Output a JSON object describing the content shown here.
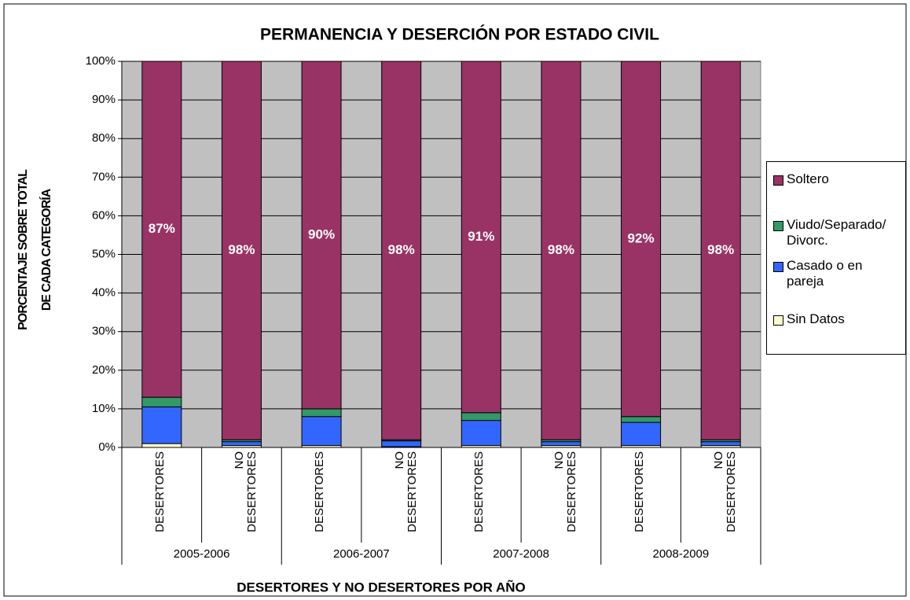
{
  "chart_data": {
    "type": "stacked_bar",
    "title": "PERMANENCIA Y DESERCIÓN POR ESTADO CIVIL",
    "xlabel": "DESERTORES Y NO DESERTORES POR AÑO",
    "ylabel": [
      "PORCENTAJE SOBRE TOTAL",
      "DE CADA CATEGORÍA"
    ],
    "categories": [
      "DESERTORES",
      "NO DESERTORES",
      "DESERTORES",
      "NO DESERTORES",
      "DESERTORES",
      "NO DESERTORES",
      "DESERTORES",
      "NO DESERTORES"
    ],
    "groups": [
      "2005-2006",
      "2006-2007",
      "2007-2008",
      "2008-2009"
    ],
    "series": [
      {
        "name": "Sin Datos",
        "color": "#ffffcc",
        "values": [
          1,
          0.5,
          0.5,
          0.2,
          0.5,
          0.5,
          0.5,
          0.5
        ]
      },
      {
        "name": "Casado o en pareja",
        "color": "#3366ff",
        "values": [
          9.5,
          1,
          7.5,
          1.5,
          6.5,
          1,
          6,
          1
        ]
      },
      {
        "name": "Viudo/Separado/Divorc.",
        "color": "#339966",
        "values": [
          2.5,
          0.5,
          2,
          0.3,
          2,
          0.5,
          1.5,
          0.5
        ]
      },
      {
        "name": "Soltero",
        "color": "#993366",
        "values": [
          87,
          98,
          90,
          98,
          91,
          98,
          92,
          98
        ],
        "value_labels": [
          "87%",
          "98%",
          "90%",
          "98%",
          "91%",
          "98%",
          "92%",
          "98%"
        ]
      }
    ],
    "ylim": [
      0,
      100
    ],
    "yticks": [
      {
        "value": 0,
        "label": "0%"
      },
      {
        "value": 10,
        "label": "10%"
      },
      {
        "value": 20,
        "label": "20%"
      },
      {
        "value": 30,
        "label": "30%"
      },
      {
        "value": 40,
        "label": "40%"
      },
      {
        "value": 50,
        "label": "50%"
      },
      {
        "value": 60,
        "label": "60%"
      },
      {
        "value": 70,
        "label": "70%"
      },
      {
        "value": 80,
        "label": "80%"
      },
      {
        "value": 90,
        "label": "90%"
      },
      {
        "value": 100,
        "label": "100%"
      }
    ],
    "grid": true,
    "legend": "right"
  }
}
